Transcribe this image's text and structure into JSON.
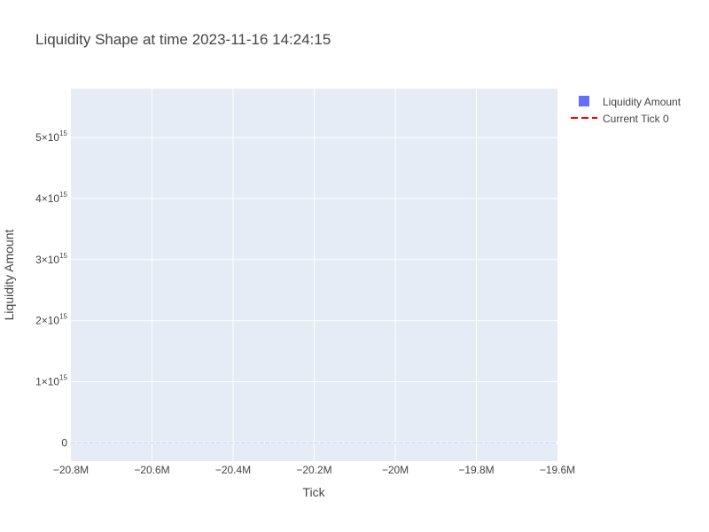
{
  "chart_data": {
    "type": "bar",
    "title": "Liquidity Shape at time 2023-11-16 14:24:15",
    "xlabel": "Tick",
    "ylabel": "Liquidity Amount",
    "xlim": [
      -20800000,
      -19600000
    ],
    "ylim": [
      -300000000000000,
      5800000000000000
    ],
    "x_ticks": [
      {
        "value": -20800000,
        "label": "−20.8M"
      },
      {
        "value": -20600000,
        "label": "−20.6M"
      },
      {
        "value": -20400000,
        "label": "−20.4M"
      },
      {
        "value": -20200000,
        "label": "−20.2M"
      },
      {
        "value": -20000000,
        "label": "−20M"
      },
      {
        "value": -19800000,
        "label": "−19.8M"
      },
      {
        "value": -19600000,
        "label": "−19.6M"
      }
    ],
    "y_ticks": [
      {
        "value": 0,
        "base": "0",
        "exp": ""
      },
      {
        "value": 1000000000000000,
        "base": "1×10",
        "exp": "15"
      },
      {
        "value": 2000000000000000,
        "base": "2×10",
        "exp": "15"
      },
      {
        "value": 3000000000000000,
        "base": "3×10",
        "exp": "15"
      },
      {
        "value": 4000000000000000,
        "base": "4×10",
        "exp": "15"
      },
      {
        "value": 5000000000000000,
        "base": "5×10",
        "exp": "15"
      }
    ],
    "bar_width": 13000,
    "x": [
      -20795000,
      -20780000,
      -20765000,
      -20750000,
      -20735000,
      -20720000,
      -20705000,
      -20690000,
      -20675000,
      -20660000,
      -20645000,
      -20630000,
      -20615000,
      -20600000,
      -20585000,
      -20570000,
      -20555000,
      -20540000,
      -20525000,
      -20510000,
      -20495000,
      -20480000,
      -20465000,
      -20450000,
      -20435000,
      -20420000,
      -20405000,
      -20390000,
      -20375000,
      -20360000,
      -20345000,
      -20330000,
      -20315000,
      -20300000,
      -20285000,
      -20270000,
      -20255000,
      -20240000,
      -20225000,
      -20210000,
      -20195000,
      -20180000,
      -20165000,
      -20150000,
      -20135000,
      -20120000,
      -20105000,
      -20090000,
      -20075000,
      -20060000,
      -20045000,
      -20030000,
      -20015000,
      -20000000,
      -19985000,
      -19970000,
      -19955000,
      -19940000,
      -19925000,
      -19910000,
      -19895000,
      -19880000,
      -19865000,
      -19850000,
      -19835000,
      -19820000,
      -19805000,
      -19790000,
      -19775000,
      -19760000,
      -19745000,
      -19730000,
      -19715000,
      -19700000,
      -19685000,
      -19670000,
      -19655000,
      -19640000,
      -19625000,
      -19610000
    ],
    "series": [
      {
        "name": "Liquidity Amount",
        "color": "#636efa",
        "values": [
          5000000000000,
          5000000000000,
          5000000000000,
          5000000000000,
          5000000000000,
          5000000000000,
          5000000000000,
          5000000000000,
          5000000000000,
          5000000000000,
          5000000000000,
          5000000000000,
          5000000000000,
          5000000000000,
          5000000000000,
          5000000000000,
          5000000000000,
          5000000000000,
          5000000000000,
          5000000000000,
          5000000000000,
          5000000000000,
          5000000000000,
          5000000000000,
          5000000000000,
          5000000000000,
          5000000000000,
          5000000000000,
          5000000000000,
          5000000000000,
          5000000000000,
          5000000000000,
          5000000000000,
          5000000000000,
          5000000000000,
          5000000000000,
          5000000000000,
          5000000000000,
          5000000000000,
          5000000000000,
          5000000000000,
          5000000000000,
          5000000000000,
          5000000000000,
          5000000000000,
          5000000000000,
          5000000000000,
          5000000000000,
          5000000000000,
          5000000000000,
          5000000000000,
          5000000000000,
          5000000000000,
          5000000000000,
          5000000000000,
          5000000000000,
          5000000000000,
          5000000000000,
          5000000000000,
          5000000000000,
          5000000000000,
          5000000000000,
          5000000000000,
          5000000000000,
          5000000000000,
          5000000000000,
          5000000000000,
          5000000000000,
          5000000000000,
          5000000000000,
          5000000000000,
          5000000000000,
          5000000000000,
          5000000000000,
          5000000000000,
          5000000000000,
          5000000000000,
          5000000000000,
          5000000000000,
          5000000000000
        ]
      },
      {
        "name": "Current Tick 0",
        "color": "#ff0000",
        "type": "line",
        "dash": "dash"
      }
    ],
    "legend_position": "top-right",
    "grid": true
  }
}
